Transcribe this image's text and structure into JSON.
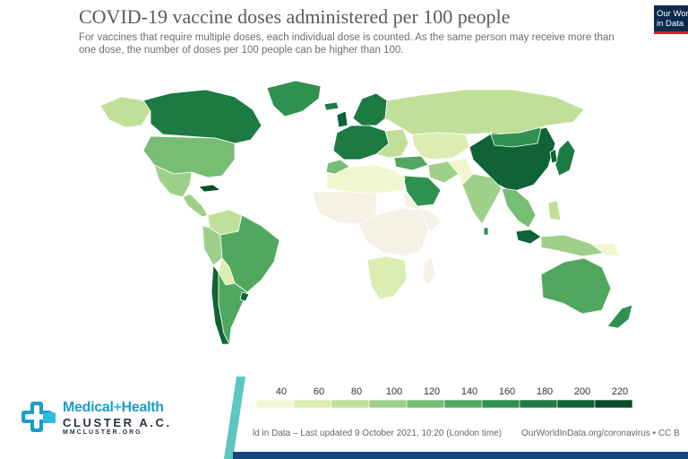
{
  "header": {
    "title": "COVID-19 vaccine doses administered per 100 people",
    "subtitle": "For vaccines that require multiple doses, each individual dose is counted. As the same person may receive more than one dose, the number of doses per 100 people can be higher than 100."
  },
  "logo": {
    "line1": "Our World",
    "line2": "in Data"
  },
  "legend": {
    "ticks": [
      "40",
      "60",
      "80",
      "100",
      "120",
      "140",
      "160",
      "180",
      "200",
      "220"
    ],
    "colors": [
      "#f1f6d0",
      "#dbedb0",
      "#c0e09a",
      "#9ed08a",
      "#77bd74",
      "#4fa85e",
      "#2f9150",
      "#1c7a43",
      "#0f6336",
      "#084d2a"
    ]
  },
  "footer": {
    "source_left": "ld in Data – Last updated 9 October 2021, 10:20 (London time)",
    "source_right": "OurWorldInData.org/coronavirus • CC B"
  },
  "branding": {
    "name_part1": "Medical",
    "name_plus": "+",
    "name_part2": "Health",
    "name_line2": "CLUSTER A.C.",
    "website": "MMCLUSTER.ORG"
  },
  "palette": {
    "no_data": "#f5f1e4",
    "border": "#ffffff",
    "brand_blue": "#1a9ec9",
    "band_blue": "#17477a",
    "teal": "#5cc6c0"
  }
}
